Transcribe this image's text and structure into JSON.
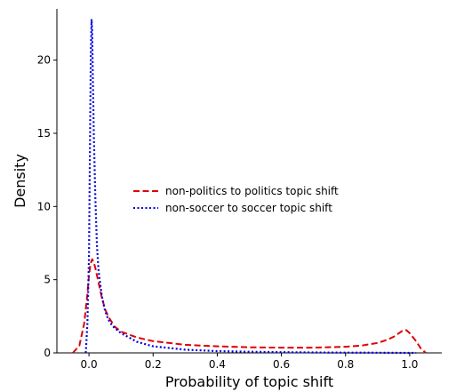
{
  "chart_data": {
    "type": "line",
    "title": "",
    "xlabel": "Probability of topic shift",
    "ylabel": "Density",
    "xlim": [
      -0.1,
      1.1
    ],
    "ylim": [
      0,
      23.5
    ],
    "xticks": [
      0.0,
      0.2,
      0.4,
      0.6,
      0.8,
      1.0
    ],
    "xtick_labels": [
      "0.0",
      "0.2",
      "0.4",
      "0.6",
      "0.8",
      "1.0"
    ],
    "yticks": [
      0,
      5,
      10,
      15,
      20
    ],
    "ytick_labels": [
      "0",
      "5",
      "10",
      "15",
      "20"
    ],
    "grid": false,
    "legend_position": "center",
    "series": [
      {
        "name": "non-politics to politics topic shift",
        "color": "#e00000",
        "style": "dashed",
        "x": [
          -0.05,
          -0.03,
          -0.015,
          -0.005,
          0.0,
          0.005,
          0.01,
          0.015,
          0.02,
          0.03,
          0.04,
          0.05,
          0.06,
          0.08,
          0.1,
          0.15,
          0.2,
          0.3,
          0.4,
          0.5,
          0.6,
          0.7,
          0.8,
          0.85,
          0.9,
          0.93,
          0.95,
          0.97,
          0.98,
          0.99,
          1.0,
          1.02,
          1.035,
          1.05
        ],
        "y": [
          0.0,
          0.5,
          2.0,
          4.0,
          5.3,
          6.1,
          6.4,
          6.2,
          5.8,
          4.8,
          3.8,
          3.0,
          2.5,
          1.8,
          1.45,
          1.05,
          0.8,
          0.55,
          0.45,
          0.38,
          0.36,
          0.36,
          0.42,
          0.5,
          0.68,
          0.9,
          1.1,
          1.4,
          1.55,
          1.55,
          1.35,
          0.8,
          0.3,
          0.0
        ]
      },
      {
        "name": "non-soccer to soccer topic shift",
        "color": "#0000e0",
        "style": "dotted",
        "x": [
          -0.01,
          -0.005,
          0.0,
          0.003,
          0.006,
          0.008,
          0.01,
          0.012,
          0.015,
          0.02,
          0.025,
          0.03,
          0.04,
          0.05,
          0.06,
          0.07,
          0.08,
          0.1,
          0.15,
          0.2,
          0.3,
          0.4,
          0.5,
          0.6,
          0.7,
          0.8,
          0.9,
          1.0,
          1.02
        ],
        "y": [
          0.0,
          2.0,
          6.5,
          14.0,
          20.5,
          22.8,
          22.0,
          19.0,
          15.0,
          10.5,
          7.3,
          5.6,
          3.9,
          2.9,
          2.3,
          1.95,
          1.7,
          1.35,
          0.75,
          0.45,
          0.22,
          0.12,
          0.08,
          0.05,
          0.03,
          0.02,
          0.01,
          0.0,
          0.0
        ]
      }
    ]
  }
}
